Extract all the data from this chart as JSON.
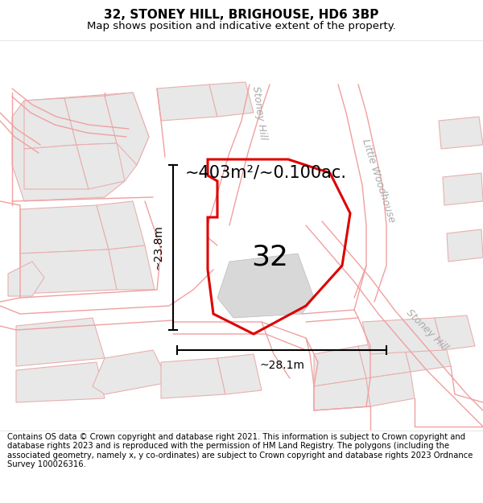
{
  "title_line1": "32, STONEY HILL, BRIGHOUSE, HD6 3BP",
  "title_line2": "Map shows position and indicative extent of the property.",
  "area_text": "~403m²/~0.100ac.",
  "number_label": "32",
  "dim_height": "~23.8m",
  "dim_width": "~28.1m",
  "street_label1": "Stoney Hill",
  "street_label2": "Little Woodhouse",
  "street_label3": "Stoney Hill",
  "footer_text": "Contains OS data © Crown copyright and database right 2021. This information is subject to Crown copyright and database rights 2023 and is reproduced with the permission of HM Land Registry. The polygons (including the associated geometry, namely x, y co-ordinates) are subject to Crown copyright and database rights 2023 Ordnance Survey 100026316.",
  "map_bg": "#ffffff",
  "building_fill": "#e8e8e8",
  "building_edge": "#e8b0b0",
  "road_line_color": "#f0a0a0",
  "red_polygon_color": "#dd0000",
  "title_fontsize": 11,
  "subtitle_fontsize": 9.5,
  "footer_fontsize": 7.2,
  "area_fontsize": 15,
  "number_fontsize": 26,
  "dim_fontsize": 10,
  "street_fontsize": 9
}
